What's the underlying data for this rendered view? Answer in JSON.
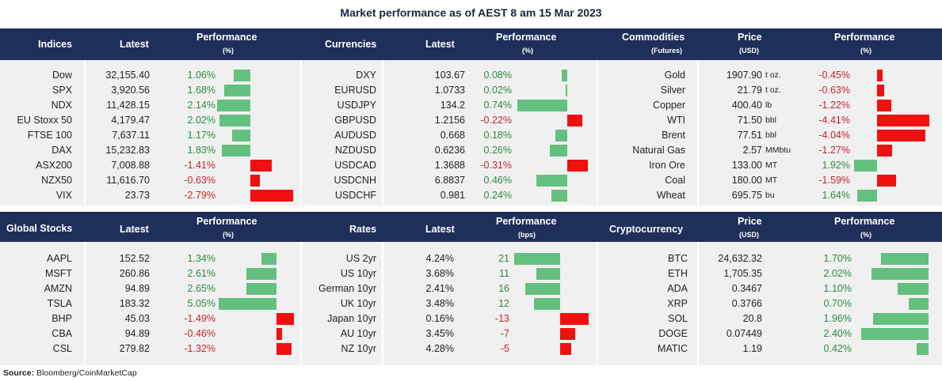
{
  "title": "Market performance as of AEST 8 am 15 Mar 2023",
  "source_label": "Source:",
  "source_text": "Bloomberg/CoinMarketCap",
  "colors": {
    "header": "#1e2f5a",
    "positive": "#2e8b3e",
    "negative": "#c0262d",
    "pos_bar": "#63c07f",
    "neg_bar": "#f01010",
    "panel": "#f0f0f0"
  },
  "chart_data": [
    {
      "type": "table",
      "headers": [
        "Indices",
        "Latest",
        "Performance",
        "(%)"
      ],
      "rows": [
        {
          "name": "Dow",
          "latest": "32,155.40",
          "perf_text": "1.06%",
          "perf": 1.06
        },
        {
          "name": "SPX",
          "latest": "3,920.56",
          "perf_text": "1.68%",
          "perf": 1.68
        },
        {
          "name": "NDX",
          "latest": "11,428.15",
          "perf_text": "2.14%",
          "perf": 2.14
        },
        {
          "name": "EU Stoxx 50",
          "latest": "4,179.47",
          "perf_text": "2.02%",
          "perf": 2.02
        },
        {
          "name": "FTSE 100",
          "latest": "7,637.11",
          "perf_text": "1.17%",
          "perf": 1.17
        },
        {
          "name": "DAX",
          "latest": "15,232.83",
          "perf_text": "1.83%",
          "perf": 1.83
        },
        {
          "name": "ASX200",
          "latest": "7,008.88",
          "perf_text": "-1.41%",
          "perf": -1.41
        },
        {
          "name": "NZX50",
          "latest": "11,616.70",
          "perf_text": "-0.63%",
          "perf": -0.63
        },
        {
          "name": "VIX",
          "latest": "23.73",
          "perf_text": "-2.79%",
          "perf": -2.79
        }
      ]
    },
    {
      "type": "table",
      "headers": [
        "Currencies",
        "Latest",
        "Performance",
        "(%)"
      ],
      "rows": [
        {
          "name": "DXY",
          "latest": "103.67",
          "perf_text": "0.08%",
          "perf": 0.08
        },
        {
          "name": "EURUSD",
          "latest": "1.0733",
          "perf_text": "0.02%",
          "perf": 0.02
        },
        {
          "name": "USDJPY",
          "latest": "134.2",
          "perf_text": "0.74%",
          "perf": 0.74
        },
        {
          "name": "GBPUSD",
          "latest": "1.2156",
          "perf_text": "-0.22%",
          "perf": -0.22
        },
        {
          "name": "AUDUSD",
          "latest": "0.668",
          "perf_text": "0.18%",
          "perf": 0.18
        },
        {
          "name": "NZDUSD",
          "latest": "0.6236",
          "perf_text": "0.26%",
          "perf": 0.26
        },
        {
          "name": "USDCAD",
          "latest": "1.3688",
          "perf_text": "-0.31%",
          "perf": -0.31
        },
        {
          "name": "USDCNH",
          "latest": "6.8837",
          "perf_text": "0.46%",
          "perf": 0.46
        },
        {
          "name": "USDCHF",
          "latest": "0.981",
          "perf_text": "0.24%",
          "perf": 0.24
        }
      ]
    },
    {
      "type": "table",
      "headers": [
        "Commodities",
        "(Futures)",
        "Price",
        "(USD)",
        "Performance",
        "(%)"
      ],
      "rows": [
        {
          "name": "Gold",
          "latest": "1907.90",
          "unit": "t oz.",
          "perf_text": "-0.45%",
          "perf": -0.45
        },
        {
          "name": "Silver",
          "latest": "21.79",
          "unit": "t oz.",
          "perf_text": "-0.63%",
          "perf": -0.63
        },
        {
          "name": "Copper",
          "latest": "400.40",
          "unit": "lb",
          "perf_text": "-1.22%",
          "perf": -1.22
        },
        {
          "name": "WTI",
          "latest": "71.50",
          "unit": "bbl",
          "perf_text": "-4.41%",
          "perf": -4.41
        },
        {
          "name": "Brent",
          "latest": "77.51",
          "unit": "bbl",
          "perf_text": "-4.04%",
          "perf": -4.04
        },
        {
          "name": "Natural Gas",
          "latest": "2.57",
          "unit": "MMbtu",
          "perf_text": "-1.27%",
          "perf": -1.27
        },
        {
          "name": "Iron Ore",
          "latest": "133.00",
          "unit": "MT",
          "perf_text": "1.92%",
          "perf": 1.92
        },
        {
          "name": "Coal",
          "latest": "180.00",
          "unit": "MT",
          "perf_text": "-1.59%",
          "perf": -1.59
        },
        {
          "name": "Wheat",
          "latest": "695.75",
          "unit": "bu",
          "perf_text": "1.64%",
          "perf": 1.64
        }
      ]
    },
    {
      "type": "table",
      "headers": [
        "Global Stocks",
        "Latest",
        "Performance",
        "(%)"
      ],
      "rows": [
        {
          "name": "AAPL",
          "latest": "152.52",
          "perf_text": "1.34%",
          "perf": 1.34
        },
        {
          "name": "MSFT",
          "latest": "260.86",
          "perf_text": "2.61%",
          "perf": 2.61
        },
        {
          "name": "AMZN",
          "latest": "94.89",
          "perf_text": "2.65%",
          "perf": 2.65
        },
        {
          "name": "TSLA",
          "latest": "183.32",
          "perf_text": "5.05%",
          "perf": 5.05
        },
        {
          "name": "BHP",
          "latest": "45.03",
          "perf_text": "-1.49%",
          "perf": -1.49
        },
        {
          "name": "CBA",
          "latest": "94.89",
          "perf_text": "-0.46%",
          "perf": -0.46
        },
        {
          "name": "CSL",
          "latest": "279.82",
          "perf_text": "-1.32%",
          "perf": -1.32
        }
      ]
    },
    {
      "type": "table",
      "headers": [
        "Rates",
        "Latest",
        "Performance",
        "(bps)"
      ],
      "rows": [
        {
          "name": "US 2yr",
          "latest": "4.24%",
          "perf_text": "21",
          "perf": 21
        },
        {
          "name": "US 10yr",
          "latest": "3.68%",
          "perf_text": "11",
          "perf": 11
        },
        {
          "name": "German 10yr",
          "latest": "2.41%",
          "perf_text": "16",
          "perf": 16
        },
        {
          "name": "UK 10yr",
          "latest": "3.48%",
          "perf_text": "12",
          "perf": 12
        },
        {
          "name": "Japan 10yr",
          "latest": "0.16%",
          "perf_text": "-13",
          "perf": -13
        },
        {
          "name": "AU 10yr",
          "latest": "3.45%",
          "perf_text": "-7",
          "perf": -7
        },
        {
          "name": "NZ 10yr",
          "latest": "4.28%",
          "perf_text": "-5",
          "perf": -5
        }
      ]
    },
    {
      "type": "table",
      "headers": [
        "Cryptocurrency",
        "Price",
        "(USD)",
        "Performance",
        "(%)"
      ],
      "rows": [
        {
          "name": "BTC",
          "latest": "24,632.32",
          "perf_text": "1.70%",
          "perf": 1.7
        },
        {
          "name": "ETH",
          "latest": "1,705.35",
          "perf_text": "2.02%",
          "perf": 2.02
        },
        {
          "name": "ADA",
          "latest": "0.3467",
          "perf_text": "1.10%",
          "perf": 1.1
        },
        {
          "name": "XRP",
          "latest": "0.3766",
          "perf_text": "0.70%",
          "perf": 0.7
        },
        {
          "name": "SOL",
          "latest": "20.8",
          "perf_text": "1.96%",
          "perf": 1.96
        },
        {
          "name": "DOGE",
          "latest": "0.07449",
          "perf_text": "2.40%",
          "perf": 2.4
        },
        {
          "name": "MATIC",
          "latest": "1.19",
          "perf_text": "0.42%",
          "perf": 0.42
        }
      ]
    }
  ]
}
